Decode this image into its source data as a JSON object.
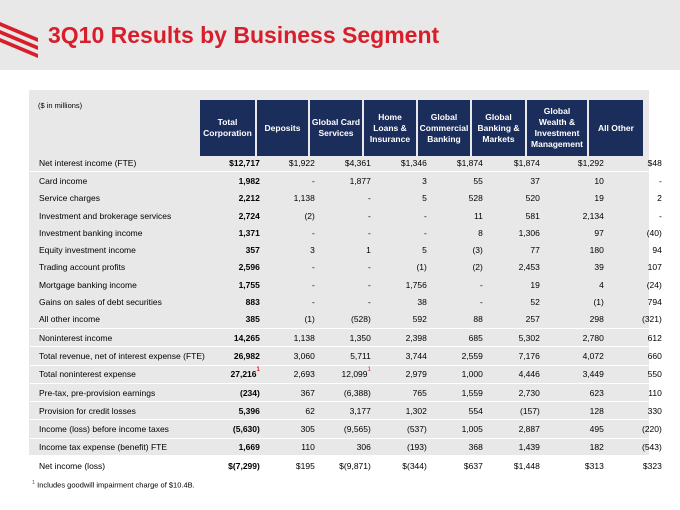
{
  "page": {
    "title": "3Q10 Results by Business Segment",
    "units": "($ in millions)",
    "footnote_marker": "1",
    "footnote_text": "Includes goodwill impairment charge of $10.4B."
  },
  "colors": {
    "title": "#d81e2a",
    "header_bg": "#1b2e5b",
    "panel_bg": "#e8e8e8",
    "logo_red": "#d81e2a"
  },
  "columns": [
    "Total\nCorporation",
    "Deposits",
    "Global Card\nServices",
    "Home\nLoans &\nInsurance",
    "Global\nCommercial\nBanking",
    "Global\nBanking &\nMarkets",
    "Global\nWealth &\nInvestment\nManagement",
    "All Other"
  ],
  "rows": [
    {
      "label": "Net interest income (FTE)",
      "values": [
        "$12,717",
        "$1,922",
        "$4,361",
        "$1,346",
        "$1,874",
        "$1,874",
        "$1,292",
        "$48"
      ]
    },
    {
      "label": "Card income",
      "values": [
        "1,982",
        "-",
        "1,877",
        "3",
        "55",
        "37",
        "10",
        "-"
      ]
    },
    {
      "label": "Service charges",
      "values": [
        "2,212",
        "1,138",
        "-",
        "5",
        "528",
        "520",
        "19",
        "2"
      ]
    },
    {
      "label": "Investment and brokerage services",
      "values": [
        "2,724",
        "(2)",
        "-",
        "-",
        "11",
        "581",
        "2,134",
        "-"
      ]
    },
    {
      "label": "Investment banking income",
      "values": [
        "1,371",
        "-",
        "-",
        "-",
        "8",
        "1,306",
        "97",
        "(40)"
      ]
    },
    {
      "label": "Equity investment income",
      "values": [
        "357",
        "3",
        "1",
        "5",
        "(3)",
        "77",
        "180",
        "94"
      ]
    },
    {
      "label": "Trading account profits",
      "values": [
        "2,596",
        "-",
        "-",
        "(1)",
        "(2)",
        "2,453",
        "39",
        "107"
      ]
    },
    {
      "label": "Mortgage banking income",
      "values": [
        "1,755",
        "-",
        "-",
        "1,756",
        "-",
        "19",
        "4",
        "(24)"
      ]
    },
    {
      "label": "Gains on sales of debt securities",
      "values": [
        "883",
        "-",
        "-",
        "38",
        "-",
        "52",
        "(1)",
        "794"
      ]
    },
    {
      "label": "All other income",
      "values": [
        "385",
        "(1)",
        "(528)",
        "592",
        "88",
        "257",
        "298",
        "(321)"
      ]
    },
    {
      "label": "Noninterest income",
      "values": [
        "14,265",
        "1,138",
        "1,350",
        "2,398",
        "685",
        "5,302",
        "2,780",
        "612"
      ]
    },
    {
      "label": "Total revenue, net of interest expense (FTE)",
      "values": [
        "26,982",
        "3,060",
        "5,711",
        "3,744",
        "2,559",
        "7,176",
        "4,072",
        "660"
      ]
    },
    {
      "label": "Total noninterest expense",
      "values": [
        "27,216",
        "2,693",
        "12,099",
        "2,979",
        "1,000",
        "4,446",
        "3,449",
        "550"
      ],
      "footnotes": [
        0,
        2
      ]
    },
    {
      "label": "Pre-tax, pre-provision earnings",
      "values": [
        "(234)",
        "367",
        "(6,388)",
        "765",
        "1,559",
        "2,730",
        "623",
        "110"
      ]
    },
    {
      "label": "Provision for credit losses",
      "values": [
        "5,396",
        "62",
        "3,177",
        "1,302",
        "554",
        "(157)",
        "128",
        "330"
      ]
    },
    {
      "label": "Income (loss) before income taxes",
      "values": [
        "(5,630)",
        "305",
        "(9,565)",
        "(537)",
        "1,005",
        "2,887",
        "495",
        "(220)"
      ]
    },
    {
      "label": "Income tax expense (benefit) FTE",
      "values": [
        "1,669",
        "110",
        "306",
        "(193)",
        "368",
        "1,439",
        "182",
        "(543)"
      ]
    },
    {
      "label": "Net income (loss)",
      "values": [
        "$(7,299)",
        "$195",
        "$(9,871)",
        "$(344)",
        "$637",
        "$1,448",
        "$313",
        "$323"
      ]
    }
  ]
}
